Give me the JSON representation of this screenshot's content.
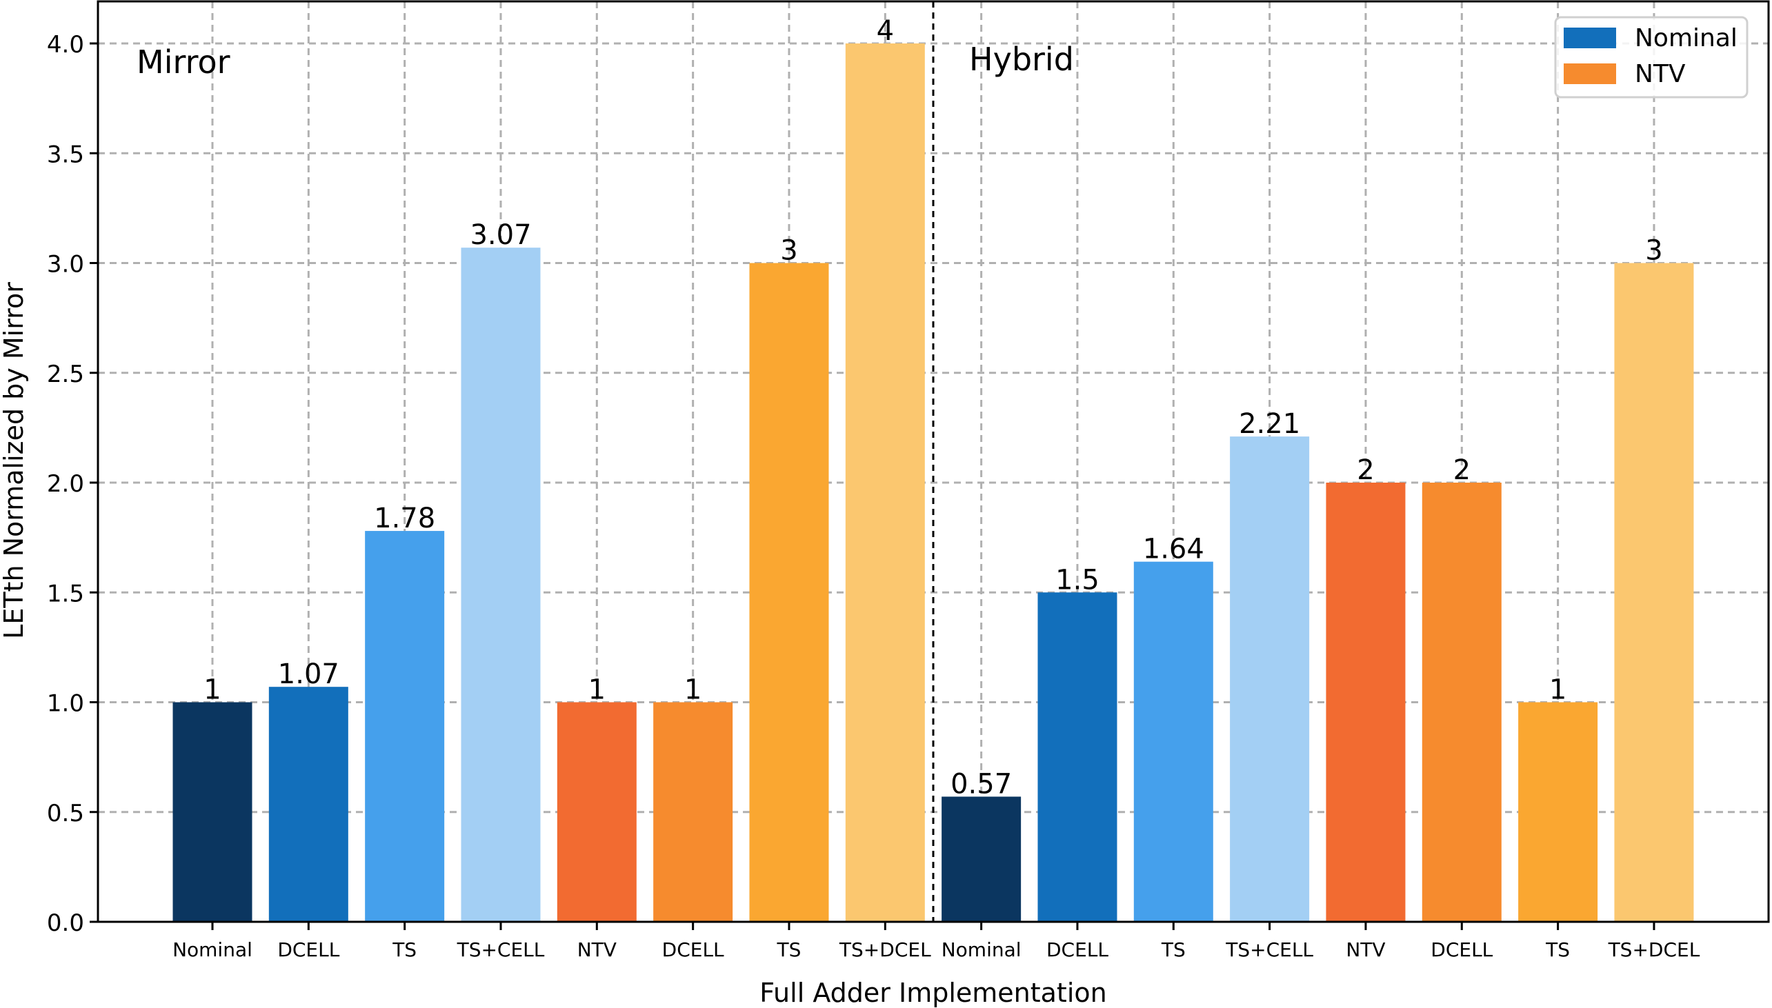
{
  "chart_data": {
    "type": "bar",
    "title": "",
    "xlabel": "Full Adder Implementation",
    "ylabel": "LETth Normalized by Mirror",
    "ylim": [
      0,
      4.2
    ],
    "yticks": [
      "0.0",
      "0.5",
      "1.0",
      "1.5",
      "2.0",
      "2.5",
      "3.0",
      "3.5",
      "4.0"
    ],
    "grid": true,
    "legend_position": "upper right",
    "groups": [
      {
        "name": "Mirror",
        "range": [
          0,
          7
        ]
      },
      {
        "name": "Hybrid",
        "range": [
          8,
          15
        ]
      }
    ],
    "categories": [
      "Nominal",
      "DCELL",
      "TS",
      "TS+CELL",
      "NTV",
      "DCELL",
      "TS",
      "TS+DCEL",
      "Nominal",
      "DCELL",
      "TS",
      "TS+CELL",
      "NTV",
      "DCELL",
      "TS",
      "TS+DCEL"
    ],
    "values": [
      1,
      1.07,
      1.78,
      3.07,
      1,
      1,
      3,
      4,
      0.57,
      1.5,
      1.64,
      2.21,
      2,
      2,
      1,
      3
    ],
    "value_labels": [
      "1",
      "1.07",
      "1.78",
      "3.07",
      "1",
      "1",
      "3",
      "4",
      "0.57",
      "1.5",
      "1.64",
      "2.21",
      "2",
      "2",
      "1",
      "3"
    ],
    "bar_colors": [
      "#0b3660",
      "#126fbb",
      "#45a0ec",
      "#a3cff4",
      "#f26b31",
      "#f68b2e",
      "#faa731",
      "#fbc76f",
      "#0b3660",
      "#126fbb",
      "#45a0ec",
      "#a3cff4",
      "#f26b31",
      "#f68b2e",
      "#faa731",
      "#fbc76f"
    ],
    "series": [
      {
        "name": "Nominal",
        "color": "#126fbb"
      },
      {
        "name": "NTV",
        "color": "#f68b2e"
      }
    ]
  },
  "annotations": {
    "left_group": "Mirror",
    "right_group": "Hybrid"
  },
  "legend": {
    "items": [
      {
        "label": "Nominal",
        "color": "#126fbb"
      },
      {
        "label": "NTV",
        "color": "#f68b2e"
      }
    ]
  }
}
